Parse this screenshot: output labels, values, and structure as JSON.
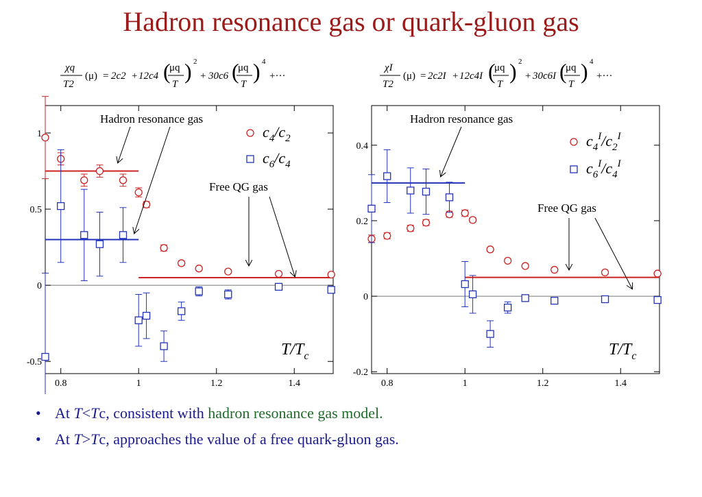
{
  "slide": {
    "title": "Hadron resonance gas or quark-gluon gas",
    "bullets": [
      {
        "prefix": "At ",
        "T": "T",
        "op": "<",
        "Tc": "T",
        "c": "c",
        "sep": ", ",
        "plain": "consistent with ",
        "highlight": "hadron resonance gas model",
        "end": "."
      },
      {
        "prefix": "At ",
        "T": "T",
        "op": ">",
        "Tc": "T",
        "c": "c",
        "sep": ", ",
        "plain": "approaches the value of a free quark-gluon gas.",
        "highlight": "",
        "end": ""
      }
    ]
  },
  "colors": {
    "title": "#9b1a1a",
    "bullet": "#1a1a8c",
    "highlight": "#1f6b2a",
    "red": "#cc2222",
    "blue": "#2233bb",
    "zero": "#777777"
  },
  "chart_data": [
    {
      "type": "scatter",
      "formula": {
        "lhs_num": "χq",
        "lhs_den": "T2",
        "mu": "(μ)",
        "c2": "2c2",
        "c4": "12c4",
        "c6": "30c6",
        "mu_q": "μq",
        "T": "T",
        "pow2": "2",
        "pow4": "4",
        "tail": "+···"
      },
      "xlabel": "T/Tc",
      "xlim": [
        0.76,
        1.5
      ],
      "ylim": [
        -0.58,
        1.18
      ],
      "xticks": [
        "0.8",
        "1",
        "1.2",
        "1.4"
      ],
      "xtick_values": [
        0.8,
        1.0,
        1.2,
        1.4
      ],
      "yticks": [
        "-0.5",
        "0",
        "0.5",
        "1"
      ],
      "ytick_values": [
        -0.5,
        0,
        0.5,
        1
      ],
      "series": [
        {
          "name": "c4/c2",
          "name_main": "c",
          "name_sub1": "4",
          "name_mid": "/c",
          "name_sub2": "2",
          "marker": "circle",
          "color": "red",
          "x": [
            0.76,
            0.8,
            0.86,
            0.9,
            0.96,
            1.0,
            1.02,
            1.065,
            1.11,
            1.155,
            1.23,
            1.36,
            1.495
          ],
          "y": [
            0.97,
            0.83,
            0.69,
            0.75,
            0.69,
            0.61,
            0.53,
            0.245,
            0.145,
            0.11,
            0.09,
            0.075,
            0.07
          ],
          "err": [
            0.27,
            0.04,
            0.04,
            0.04,
            0.04,
            0.03,
            0.02,
            0.02,
            0.015,
            0.01,
            0.01,
            0.01,
            0.01
          ]
        },
        {
          "name": "c6/c4",
          "name_main": "c",
          "name_sub1": "6",
          "name_mid": "/c",
          "name_sub2": "4",
          "marker": "square",
          "color": "blue",
          "x": [
            0.76,
            0.8,
            0.86,
            0.9,
            0.96,
            1.0,
            1.02,
            1.065,
            1.11,
            1.155,
            1.23,
            1.36,
            1.495
          ],
          "y": [
            -0.47,
            0.52,
            0.33,
            0.27,
            0.33,
            -0.23,
            -0.2,
            -0.4,
            -0.17,
            -0.04,
            -0.06,
            -0.01,
            -0.03
          ],
          "err": [
            0.55,
            0.37,
            0.3,
            0.21,
            0.18,
            0.17,
            0.15,
            0.1,
            0.06,
            0.03,
            0.03,
            0.02,
            0.02
          ]
        }
      ],
      "reference_lines": [
        {
          "label": "Hadron resonance gas",
          "color": "red",
          "y": 0.75,
          "x": [
            0.76,
            1.0
          ]
        },
        {
          "label": "Hadron resonance gas",
          "color": "blue",
          "y": 0.3,
          "x": [
            0.76,
            1.0
          ]
        },
        {
          "label": "Free QG gas",
          "color": "red",
          "y": 0.05,
          "x": [
            1.0,
            1.5
          ]
        }
      ],
      "annotations": {
        "hrg": "Hadron resonance gas",
        "qg": "Free QG gas"
      }
    },
    {
      "type": "scatter",
      "formula": {
        "lhs_num": "χI",
        "lhs_den": "T2",
        "mu": "(μ)",
        "c2": "2c2I",
        "c4": "12c4I",
        "c6": "30c6I",
        "mu_q": "μq",
        "T": "T",
        "pow2": "2",
        "pow4": "4",
        "tail": "+···"
      },
      "xlabel": "T/Tc",
      "xlim": [
        0.76,
        1.5
      ],
      "ylim": [
        -0.205,
        0.505
      ],
      "xticks": [
        "0.8",
        "1",
        "1.2",
        "1.4"
      ],
      "xtick_values": [
        0.8,
        1.0,
        1.2,
        1.4
      ],
      "yticks": [
        "-0.2",
        "0",
        "0.2",
        "0.4"
      ],
      "ytick_values": [
        -0.2,
        0,
        0.2,
        0.4
      ],
      "series": [
        {
          "name": "c4I/c2I",
          "name_main": "c",
          "name_sub1": "4",
          "name_mid": "/c",
          "name_sub2": "2",
          "name_sup": "I",
          "marker": "circle",
          "color": "red",
          "x": [
            0.76,
            0.8,
            0.86,
            0.9,
            0.96,
            1.0,
            1.02,
            1.065,
            1.11,
            1.155,
            1.23,
            1.36,
            1.495
          ],
          "y": [
            0.152,
            0.16,
            0.18,
            0.195,
            0.217,
            0.22,
            0.202,
            0.124,
            0.094,
            0.08,
            0.07,
            0.063,
            0.06
          ],
          "err": [
            0.01,
            0.008,
            0.008,
            0.008,
            0.008,
            0.008,
            0.006,
            0.005,
            0.004,
            0.004,
            0.003,
            0.003,
            0.003
          ]
        },
        {
          "name": "c6I/c4I",
          "name_main": "c",
          "name_sub1": "6",
          "name_mid": "/c",
          "name_sub2": "4",
          "name_sup": "I",
          "marker": "square",
          "color": "blue",
          "x": [
            0.76,
            0.8,
            0.86,
            0.9,
            0.96,
            1.0,
            1.02,
            1.065,
            1.11,
            1.155,
            1.23,
            1.36,
            1.495
          ],
          "y": [
            0.232,
            0.318,
            0.28,
            0.277,
            0.262,
            0.032,
            0.005,
            -0.1,
            -0.03,
            -0.005,
            -0.012,
            -0.008,
            -0.01
          ],
          "err": [
            0.09,
            0.07,
            0.06,
            0.06,
            0.04,
            0.06,
            0.05,
            0.035,
            0.015,
            0.008,
            0.006,
            0.005,
            0.005
          ]
        }
      ],
      "reference_lines": [
        {
          "label": "Hadron resonance gas",
          "color": "blue",
          "y": 0.3,
          "x": [
            0.76,
            1.0
          ]
        },
        {
          "label": "Free QG gas",
          "color": "red",
          "y": 0.05,
          "x": [
            1.0,
            1.5
          ]
        }
      ],
      "annotations": {
        "hrg": "Hadron resonance gas",
        "qg": "Free QG gas"
      }
    }
  ]
}
